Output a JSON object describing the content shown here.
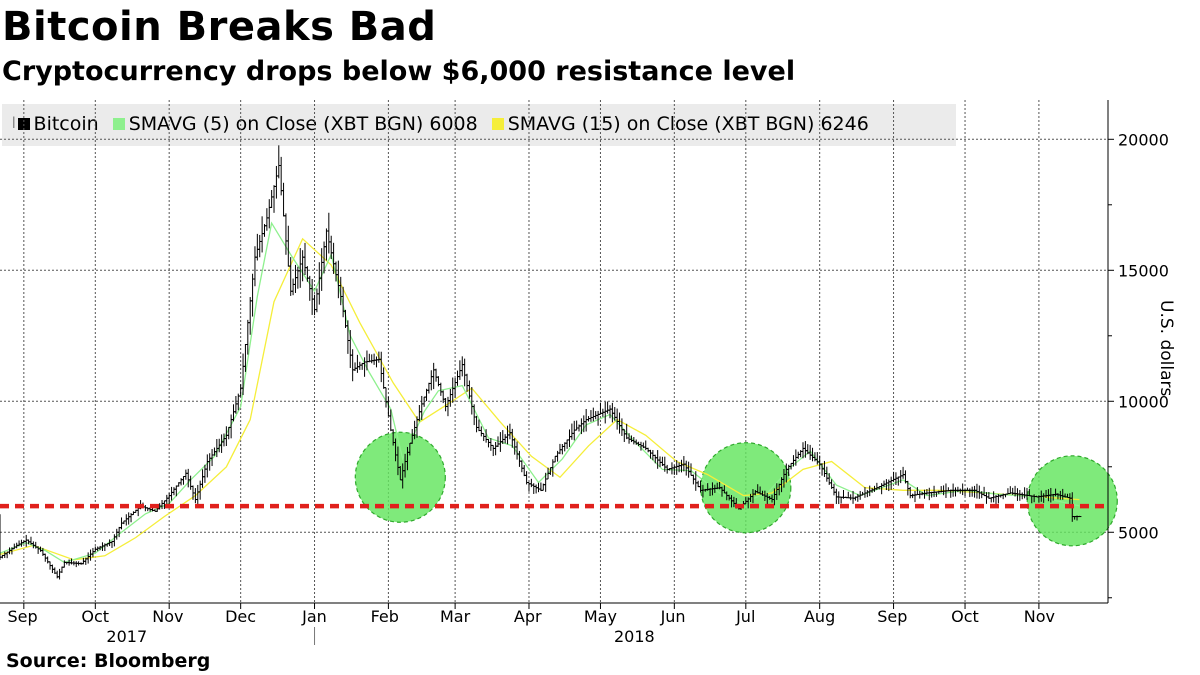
{
  "title": "Bitcoin Breaks Bad",
  "subtitle": "Cryptocurrency drops below $6,000 resistance level",
  "source": "Source:  Bloomberg",
  "legend": [
    {
      "label": "Bitcoin",
      "color": "#000000",
      "icon": "candlestick-handle-icon"
    },
    {
      "label": "SMAVG (5)  on Close (XBT BGN) 6008",
      "color": "#8ef08e"
    },
    {
      "label": "SMAVG (15)  on Close (XBT BGN) 6246",
      "color": "#f5ee3a"
    }
  ],
  "colors": {
    "grid": "#555555",
    "resistance": "#e0201c",
    "highlight_fill": "#63e55e",
    "highlight_stroke": "#2faa2c",
    "sma5": "#8ef08e",
    "sma15": "#f5ee3a",
    "price": "#000000"
  },
  "chart_data": {
    "type": "line",
    "title": "Bitcoin Breaks Bad",
    "subtitle": "Cryptocurrency drops below $6,000 resistance level",
    "ylabel": "U.S. dollars",
    "ylim": [
      2300,
      21500
    ],
    "yticks": [
      5000,
      10000,
      15000,
      20000
    ],
    "xlim": [
      "2017-08-22",
      "2018-11-30"
    ],
    "xtick_labels": [
      "Sep",
      "Oct",
      "Nov",
      "Dec",
      "Jan",
      "Feb",
      "Mar",
      "Apr",
      "May",
      "Jun",
      "Jul",
      "Aug",
      "Sep",
      "Oct",
      "Nov"
    ],
    "xtick_dates": [
      "2017-09-01",
      "2017-10-01",
      "2017-11-01",
      "2017-12-01",
      "2018-01-01",
      "2018-02-01",
      "2018-03-01",
      "2018-04-01",
      "2018-05-01",
      "2018-06-01",
      "2018-07-01",
      "2018-08-01",
      "2018-09-01",
      "2018-10-01",
      "2018-11-01"
    ],
    "year_labels": [
      {
        "label": "2017",
        "date": "2017-10-31"
      },
      {
        "label": "2018",
        "date": "2018-06-01"
      }
    ],
    "grid": true,
    "legend_position": "top",
    "resistance_level": 6000,
    "highlight_zones": [
      {
        "date": "2018-02-06",
        "value": 7100
      },
      {
        "date": "2018-07-01",
        "value": 6700
      },
      {
        "date": "2018-11-15",
        "value": 6200
      }
    ],
    "series": [
      {
        "name": "Bitcoin",
        "style": "ohlc-bars",
        "points": [
          [
            "2017-08-22",
            4050
          ],
          [
            "2017-08-29",
            4500
          ],
          [
            "2017-09-02",
            4700
          ],
          [
            "2017-09-08",
            4300
          ],
          [
            "2017-09-15",
            3300
          ],
          [
            "2017-09-18",
            3850
          ],
          [
            "2017-09-25",
            3800
          ],
          [
            "2017-10-01",
            4350
          ],
          [
            "2017-10-08",
            4650
          ],
          [
            "2017-10-12",
            5350
          ],
          [
            "2017-10-20",
            6000
          ],
          [
            "2017-10-26",
            5800
          ],
          [
            "2017-11-01",
            6400
          ],
          [
            "2017-11-08",
            7250
          ],
          [
            "2017-11-12",
            6250
          ],
          [
            "2017-11-17",
            7700
          ],
          [
            "2017-11-25",
            8700
          ],
          [
            "2017-12-01",
            10500
          ],
          [
            "2017-12-07",
            15500
          ],
          [
            "2017-12-12",
            17000
          ],
          [
            "2017-12-17",
            19000
          ],
          [
            "2017-12-22",
            14200
          ],
          [
            "2017-12-27",
            15500
          ],
          [
            "2018-01-01",
            13500
          ],
          [
            "2018-01-06",
            16500
          ],
          [
            "2018-01-12",
            14000
          ],
          [
            "2018-01-17",
            11200
          ],
          [
            "2018-01-22",
            11500
          ],
          [
            "2018-01-28",
            11600
          ],
          [
            "2018-02-02",
            8900
          ],
          [
            "2018-02-06",
            7000
          ],
          [
            "2018-02-10",
            8400
          ],
          [
            "2018-02-15",
            9900
          ],
          [
            "2018-02-20",
            11200
          ],
          [
            "2018-02-25",
            9800
          ],
          [
            "2018-03-04",
            11400
          ],
          [
            "2018-03-10",
            9000
          ],
          [
            "2018-03-17",
            8200
          ],
          [
            "2018-03-24",
            8800
          ],
          [
            "2018-03-31",
            6900
          ],
          [
            "2018-04-06",
            6600
          ],
          [
            "2018-04-12",
            7900
          ],
          [
            "2018-04-20",
            8900
          ],
          [
            "2018-04-25",
            9300
          ],
          [
            "2018-05-05",
            9700
          ],
          [
            "2018-05-12",
            8600
          ],
          [
            "2018-05-20",
            8200
          ],
          [
            "2018-05-29",
            7400
          ],
          [
            "2018-06-05",
            7600
          ],
          [
            "2018-06-12",
            6600
          ],
          [
            "2018-06-20",
            6700
          ],
          [
            "2018-06-28",
            5900
          ],
          [
            "2018-07-05",
            6550
          ],
          [
            "2018-07-12",
            6250
          ],
          [
            "2018-07-18",
            7400
          ],
          [
            "2018-07-25",
            8200
          ],
          [
            "2018-08-01",
            7600
          ],
          [
            "2018-08-08",
            6350
          ],
          [
            "2018-08-15",
            6300
          ],
          [
            "2018-08-25",
            6700
          ],
          [
            "2018-09-05",
            7200
          ],
          [
            "2018-09-08",
            6400
          ],
          [
            "2018-09-15",
            6500
          ],
          [
            "2018-09-25",
            6600
          ],
          [
            "2018-10-05",
            6600
          ],
          [
            "2018-10-11",
            6300
          ],
          [
            "2018-10-20",
            6500
          ],
          [
            "2018-10-31",
            6350
          ],
          [
            "2018-11-08",
            6450
          ],
          [
            "2018-11-14",
            6300
          ],
          [
            "2018-11-15",
            5600
          ],
          [
            "2018-11-18",
            5600
          ]
        ]
      },
      {
        "name": "SMAVG (5)  on Close (XBT BGN) 6008",
        "points": [
          [
            "2017-08-22",
            4200
          ],
          [
            "2017-09-02",
            4600
          ],
          [
            "2017-09-10",
            4300
          ],
          [
            "2017-09-18",
            3850
          ],
          [
            "2017-10-01",
            4200
          ],
          [
            "2017-10-12",
            5000
          ],
          [
            "2017-10-22",
            5700
          ],
          [
            "2017-11-01",
            6100
          ],
          [
            "2017-11-10",
            7000
          ],
          [
            "2017-11-20",
            7900
          ],
          [
            "2017-12-01",
            9800
          ],
          [
            "2017-12-08",
            14000
          ],
          [
            "2017-12-14",
            16800
          ],
          [
            "2017-12-22",
            15600
          ],
          [
            "2018-01-01",
            14200
          ],
          [
            "2018-01-08",
            15600
          ],
          [
            "2018-01-16",
            12500
          ],
          [
            "2018-01-24",
            11100
          ],
          [
            "2018-02-02",
            9700
          ],
          [
            "2018-02-07",
            7800
          ],
          [
            "2018-02-16",
            9600
          ],
          [
            "2018-02-22",
            10400
          ],
          [
            "2018-03-04",
            10600
          ],
          [
            "2018-03-15",
            8600
          ],
          [
            "2018-03-25",
            8300
          ],
          [
            "2018-04-05",
            6900
          ],
          [
            "2018-04-15",
            7800
          ],
          [
            "2018-04-25",
            9100
          ],
          [
            "2018-05-05",
            9500
          ],
          [
            "2018-05-15",
            8500
          ],
          [
            "2018-05-27",
            7400
          ],
          [
            "2018-06-08",
            7350
          ],
          [
            "2018-06-20",
            6500
          ],
          [
            "2018-06-29",
            6100
          ],
          [
            "2018-07-10",
            6500
          ],
          [
            "2018-07-20",
            7500
          ],
          [
            "2018-07-28",
            8100
          ],
          [
            "2018-08-08",
            6800
          ],
          [
            "2018-08-18",
            6400
          ],
          [
            "2018-09-05",
            7000
          ],
          [
            "2018-09-15",
            6400
          ],
          [
            "2018-10-01",
            6600
          ],
          [
            "2018-10-15",
            6450
          ],
          [
            "2018-11-01",
            6350
          ],
          [
            "2018-11-18",
            6008
          ]
        ]
      },
      {
        "name": "SMAVG (15)  on Close (XBT BGN) 6246",
        "points": [
          [
            "2017-08-22",
            4150
          ],
          [
            "2017-09-05",
            4500
          ],
          [
            "2017-09-22",
            3950
          ],
          [
            "2017-10-05",
            4100
          ],
          [
            "2017-10-18",
            4800
          ],
          [
            "2017-10-30",
            5600
          ],
          [
            "2017-11-12",
            6400
          ],
          [
            "2017-11-25",
            7500
          ],
          [
            "2017-12-05",
            9300
          ],
          [
            "2017-12-15",
            13800
          ],
          [
            "2017-12-27",
            16200
          ],
          [
            "2018-01-08",
            15200
          ],
          [
            "2018-01-20",
            13000
          ],
          [
            "2018-02-03",
            10700
          ],
          [
            "2018-02-14",
            9200
          ],
          [
            "2018-02-26",
            9900
          ],
          [
            "2018-03-08",
            10500
          ],
          [
            "2018-03-20",
            9200
          ],
          [
            "2018-04-02",
            7900
          ],
          [
            "2018-04-14",
            7100
          ],
          [
            "2018-04-26",
            8300
          ],
          [
            "2018-05-08",
            9300
          ],
          [
            "2018-05-20",
            8700
          ],
          [
            "2018-06-02",
            7700
          ],
          [
            "2018-06-15",
            7200
          ],
          [
            "2018-06-30",
            6400
          ],
          [
            "2018-07-12",
            6500
          ],
          [
            "2018-07-25",
            7400
          ],
          [
            "2018-08-06",
            7700
          ],
          [
            "2018-08-20",
            6700
          ],
          [
            "2018-09-05",
            6600
          ],
          [
            "2018-09-20",
            6600
          ],
          [
            "2018-10-10",
            6500
          ],
          [
            "2018-10-25",
            6400
          ],
          [
            "2018-11-18",
            6246
          ]
        ]
      }
    ]
  }
}
